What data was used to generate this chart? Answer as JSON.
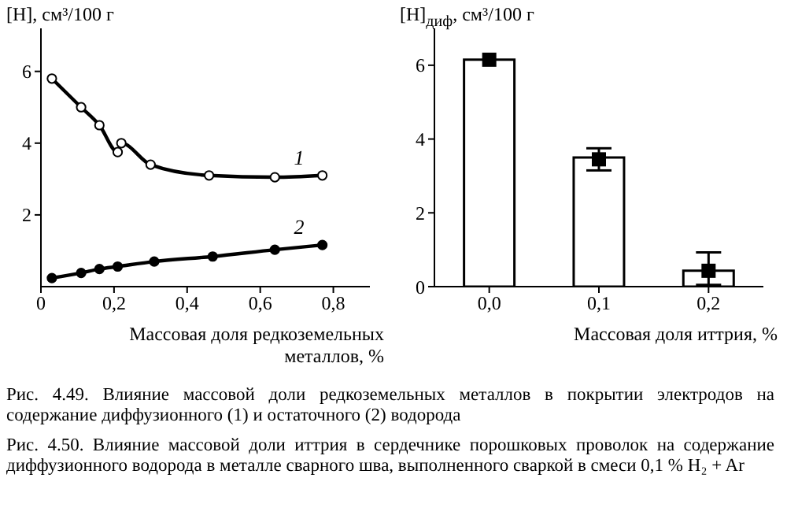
{
  "chart_data": [
    {
      "type": "line",
      "ylabel": "[H], см³/100 г",
      "xlabel": "Массовая доля редкоземельных металлов, %",
      "xlim": [
        0,
        0.9
      ],
      "ylim": [
        0,
        7.2
      ],
      "xticks": [
        {
          "value": 0,
          "label": "0"
        },
        {
          "value": 0.2,
          "label": "0,2"
        },
        {
          "value": 0.4,
          "label": "0,4"
        },
        {
          "value": 0.6,
          "label": "0,6"
        },
        {
          "value": 0.8,
          "label": "0,8"
        }
      ],
      "yticks": [
        2,
        4,
        6
      ],
      "grid": false,
      "legend": false,
      "marker": "circle",
      "series": [
        {
          "name": "1",
          "color": "#000000",
          "x": [
            0.03,
            0.11,
            0.16,
            0.21,
            0.22,
            0.3,
            0.46,
            0.64,
            0.77
          ],
          "values": [
            5.8,
            5.0,
            4.5,
            3.75,
            4.0,
            3.4,
            3.1,
            3.05,
            3.1
          ]
        },
        {
          "name": "2",
          "color": "#000000",
          "x": [
            0.03,
            0.11,
            0.16,
            0.21,
            0.31,
            0.47,
            0.64,
            0.77
          ],
          "values": [
            0.24,
            0.38,
            0.49,
            0.56,
            0.7,
            0.84,
            1.03,
            1.16
          ]
        }
      ],
      "annotations": [
        "Рис. 4.49. Влияние массовой доли редкоземельных металлов в покрытии электродов на содержание диффузионного (1) и остаточного (2) водорода"
      ]
    },
    {
      "type": "bar",
      "ylabel": "[H]$_{диф}$, см³/100 г",
      "xlabel": "Массовая доля иттрия, %",
      "categories": [
        "0,0",
        "0,1",
        "0,2"
      ],
      "ylim": [
        0,
        7
      ],
      "yticks": [
        0,
        2,
        4,
        6
      ],
      "grid": false,
      "legend": false,
      "series": [
        {
          "color": "#ffffff",
          "values": [
            6.15,
            3.5,
            0.43
          ]
        },
        {
          "type": "scatter",
          "marker": "square",
          "color": "#000000",
          "x": [
            "0,0",
            "0,1",
            "0,2"
          ],
          "values": [
            6.15,
            3.45,
            0.43
          ],
          "errors": [
            null,
            [
              3.15,
              3.75
            ],
            [
              0.05,
              0.93
            ]
          ]
        }
      ],
      "annotations": [
        "Рис. 4.50. Влияние массовой доли иттрия в сердечнике порошковых проволок на содержание диффузионного водорода в металле сварного шва, выполненного сваркой в смеси 0,1 % H₂ + Ar"
      ]
    }
  ]
}
